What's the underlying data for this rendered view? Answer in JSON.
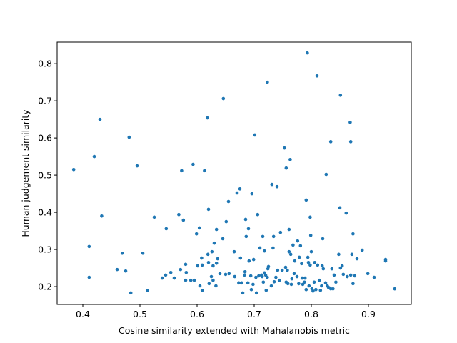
{
  "chart_data": {
    "type": "scatter",
    "xlabel": "Cosine similarity extended with Mahalanobis metric",
    "ylabel": "Human judgement similarity",
    "color": "#1f77b4",
    "xlim": [
      0.355,
      0.975
    ],
    "ylim": [
      0.152,
      0.858
    ],
    "xticks": [
      0.4,
      0.5,
      0.6,
      0.7,
      0.8,
      0.9
    ],
    "yticks": [
      0.2,
      0.3,
      0.4,
      0.5,
      0.6,
      0.7,
      0.8
    ],
    "x": [
      0.384,
      0.411,
      0.411,
      0.42,
      0.43,
      0.433,
      0.46,
      0.469,
      0.475,
      0.481,
      0.484,
      0.495,
      0.505,
      0.513,
      0.525,
      0.546,
      0.539,
      0.545,
      0.554,
      0.56,
      0.568,
      0.573,
      0.571,
      0.576,
      0.58,
      0.581,
      0.58,
      0.589,
      0.593,
      0.595,
      0.599,
      0.601,
      0.604,
      0.605,
      0.608,
      0.609,
      0.609,
      0.613,
      0.618,
      0.62,
      0.619,
      0.62,
      0.621,
      0.625,
      0.626,
      0.628,
      0.628,
      0.63,
      0.633,
      0.634,
      0.634,
      0.636,
      0.64,
      0.645,
      0.646,
      0.65,
      0.651,
      0.655,
      0.656,
      0.665,
      0.666,
      0.67,
      0.673,
      0.675,
      0.676,
      0.678,
      0.68,
      0.683,
      0.684,
      0.685,
      0.686,
      0.689,
      0.69,
      0.691,
      0.694,
      0.695,
      0.696,
      0.698,
      0.699,
      0.701,
      0.703,
      0.704,
      0.706,
      0.708,
      0.71,
      0.713,
      0.714,
      0.715,
      0.716,
      0.718,
      0.718,
      0.72,
      0.721,
      0.723,
      0.723,
      0.724,
      0.725,
      0.73,
      0.731,
      0.733,
      0.734,
      0.735,
      0.738,
      0.74,
      0.741,
      0.744,
      0.746,
      0.749,
      0.753,
      0.755,
      0.756,
      0.756,
      0.758,
      0.759,
      0.761,
      0.761,
      0.763,
      0.764,
      0.765,
      0.766,
      0.768,
      0.77,
      0.771,
      0.775,
      0.776,
      0.778,
      0.779,
      0.781,
      0.783,
      0.784,
      0.785,
      0.788,
      0.789,
      0.791,
      0.791,
      0.793,
      0.794,
      0.795,
      0.796,
      0.798,
      0.798,
      0.799,
      0.8,
      0.801,
      0.803,
      0.805,
      0.806,
      0.808,
      0.81,
      0.811,
      0.814,
      0.816,
      0.818,
      0.819,
      0.82,
      0.821,
      0.825,
      0.826,
      0.828,
      0.83,
      0.833,
      0.834,
      0.834,
      0.836,
      0.838,
      0.84,
      0.843,
      0.848,
      0.85,
      0.851,
      0.851,
      0.854,
      0.856,
      0.861,
      0.863,
      0.868,
      0.869,
      0.869,
      0.871,
      0.873,
      0.873,
      0.876,
      0.88,
      0.889,
      0.899,
      0.91,
      0.93,
      0.93,
      0.946
    ],
    "values": [
      0.515,
      0.308,
      0.225,
      0.55,
      0.65,
      0.39,
      0.246,
      0.29,
      0.242,
      0.602,
      0.183,
      0.525,
      0.29,
      0.19,
      0.387,
      0.356,
      0.223,
      0.231,
      0.238,
      0.223,
      0.394,
      0.512,
      0.246,
      0.379,
      0.26,
      0.238,
      0.217,
      0.217,
      0.529,
      0.217,
      0.342,
      0.256,
      0.358,
      0.202,
      0.277,
      0.258,
      0.19,
      0.512,
      0.654,
      0.408,
      0.287,
      0.265,
      0.208,
      0.227,
      0.294,
      0.256,
      0.217,
      0.317,
      0.202,
      0.354,
      0.263,
      0.275,
      0.235,
      0.329,
      0.706,
      0.233,
      0.375,
      0.429,
      0.235,
      0.294,
      0.227,
      0.452,
      0.21,
      0.463,
      0.277,
      0.21,
      0.183,
      0.231,
      0.24,
      0.381,
      0.335,
      0.21,
      0.356,
      0.269,
      0.229,
      0.192,
      0.45,
      0.206,
      0.273,
      0.608,
      0.225,
      0.183,
      0.394,
      0.229,
      0.304,
      0.231,
      0.227,
      0.335,
      0.212,
      0.296,
      0.237,
      0.231,
      0.19,
      0.75,
      0.225,
      0.248,
      0.254,
      0.202,
      0.475,
      0.304,
      0.335,
      0.213,
      0.225,
      0.469,
      0.244,
      0.217,
      0.346,
      0.244,
      0.573,
      0.252,
      0.519,
      0.212,
      0.244,
      0.208,
      0.354,
      0.294,
      0.542,
      0.287,
      0.206,
      0.221,
      0.312,
      0.235,
      0.269,
      0.227,
      0.323,
      0.208,
      0.279,
      0.31,
      0.262,
      0.223,
      0.206,
      0.212,
      0.223,
      0.433,
      0.192,
      0.829,
      0.279,
      0.265,
      0.202,
      0.387,
      0.258,
      0.338,
      0.294,
      0.194,
      0.188,
      0.212,
      0.265,
      0.192,
      0.767,
      0.258,
      0.217,
      0.19,
      0.202,
      0.256,
      0.329,
      0.248,
      0.21,
      0.502,
      0.202,
      0.198,
      0.196,
      0.59,
      0.194,
      0.248,
      0.194,
      0.231,
      0.212,
      0.287,
      0.412,
      0.715,
      0.25,
      0.256,
      0.233,
      0.398,
      0.227,
      0.642,
      0.59,
      0.231,
      0.287,
      0.342,
      0.208,
      0.229,
      0.275,
      0.298,
      0.235,
      0.225,
      0.273,
      0.269,
      0.194
    ]
  }
}
